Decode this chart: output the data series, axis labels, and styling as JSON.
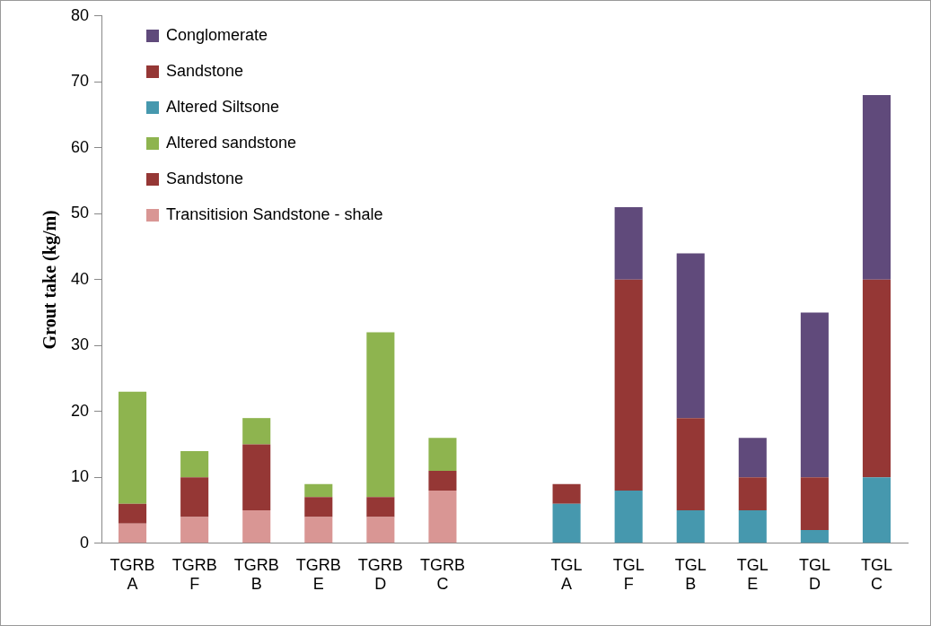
{
  "chart_data": {
    "type": "bar",
    "stacked": true,
    "ylabel": "Grout take (kg/m)",
    "categories": [
      "TGRB A",
      "TGRB F",
      "TGRB B",
      "TGRB E",
      "TGRB D",
      "TGRB C",
      null,
      "TGL A",
      "TGL F",
      "TGL B",
      "TGL E",
      "TGL D",
      "TGL C"
    ],
    "series": [
      {
        "name": "Transitision Sandstone - shale",
        "color": "#d99694",
        "values": [
          3,
          4,
          5,
          4,
          4,
          8,
          null,
          null,
          null,
          null,
          null,
          null,
          null
        ]
      },
      {
        "name": "Sandstone",
        "color": "#953735",
        "values": [
          3,
          6,
          10,
          3,
          3,
          3,
          null,
          null,
          null,
          null,
          null,
          null,
          null
        ]
      },
      {
        "name": "Altered sandstone",
        "color": "#8eb44f",
        "values": [
          17,
          4,
          4,
          2,
          25,
          5,
          null,
          null,
          null,
          null,
          null,
          null,
          null
        ]
      },
      {
        "name": "Altered Siltsone",
        "color": "#4698ae",
        "values": [
          null,
          null,
          null,
          null,
          null,
          null,
          null,
          6,
          8,
          5,
          5,
          2,
          10
        ]
      },
      {
        "name": "Sandstone",
        "color": "#953735",
        "values": [
          null,
          null,
          null,
          null,
          null,
          null,
          null,
          3,
          32,
          14,
          5,
          8,
          30
        ]
      },
      {
        "name": "Conglomerate",
        "color": "#604a7b",
        "values": [
          null,
          null,
          null,
          null,
          null,
          null,
          null,
          null,
          11,
          25,
          6,
          25,
          28
        ]
      }
    ],
    "ylim": [
      0,
      80
    ],
    "yticks": [
      0,
      10,
      20,
      30,
      40,
      50,
      60,
      70,
      80
    ],
    "grid": false,
    "legend": "top left"
  }
}
